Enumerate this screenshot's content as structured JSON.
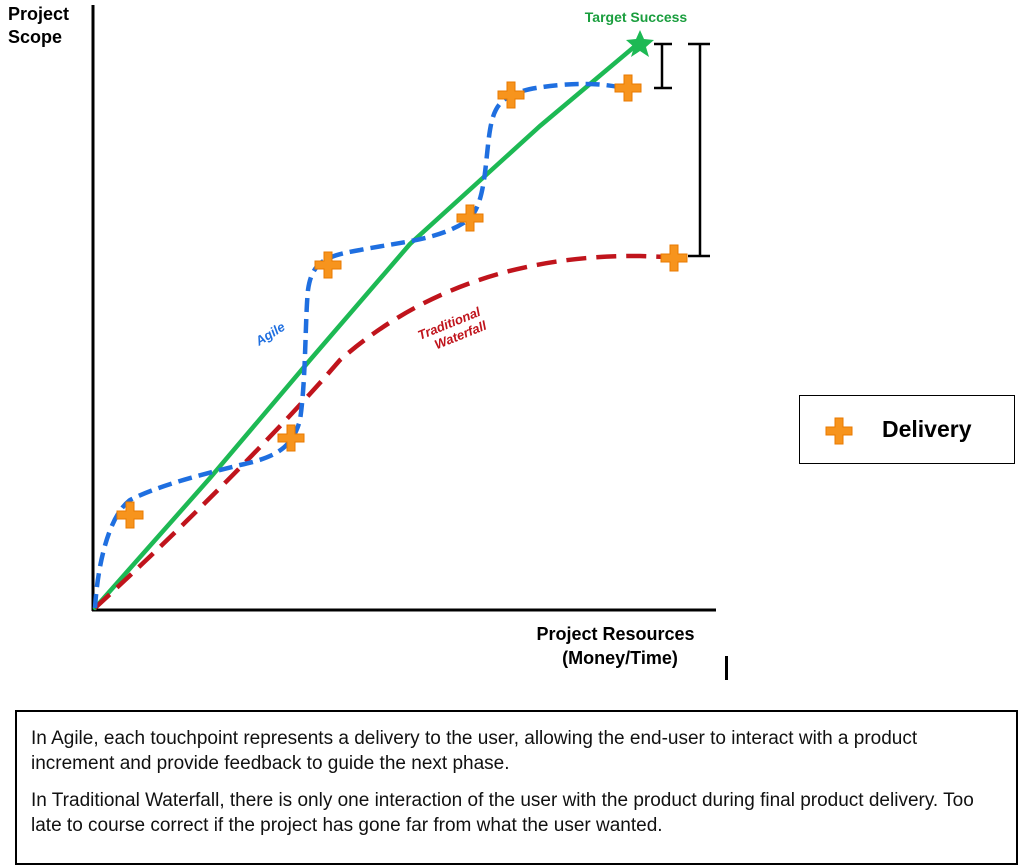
{
  "axes": {
    "y_title": [
      "Project",
      "Scope"
    ],
    "x_title": [
      "Project Resources",
      "(Money/Time)"
    ]
  },
  "labels": {
    "target": "Target Success",
    "agile": "Agile",
    "waterfall": [
      "Traditional",
      "Waterfall"
    ]
  },
  "legend": {
    "label": "Delivery",
    "icon": "plus-icon"
  },
  "notes": [
    "In Agile, each touchpoint represents a delivery to the user, allowing the end-user to interact with a product increment and provide feedback to guide the next phase.",
    "In Traditional Waterfall, there is only one interaction of the user with the product during final product delivery. Too late to course correct if the project has gone far from what the user wanted."
  ],
  "colors": {
    "target": "#1db954",
    "agile": "#1f6fe0",
    "waterfall": "#c0141c",
    "delivery": "#f7941d",
    "axis": "#000000"
  }
}
